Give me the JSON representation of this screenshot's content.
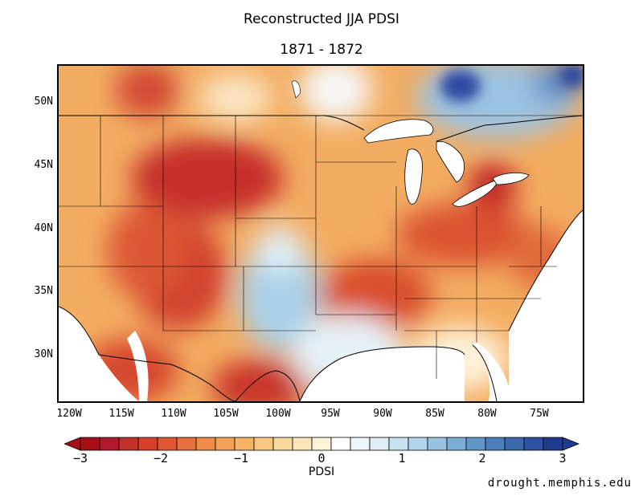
{
  "title": "Reconstructed JJA PDSI",
  "subtitle": "1871 - 1872",
  "map": {
    "lat_labels": [
      "50N",
      "45N",
      "40N",
      "35N",
      "30N"
    ],
    "lon_labels": [
      "120W",
      "115W",
      "110W",
      "105W",
      "100W",
      "95W",
      "90W",
      "85W",
      "80W",
      "75W"
    ]
  },
  "colorbar": {
    "title": "PDSI",
    "tick_labels": [
      "−3",
      "−2",
      "−1",
      "0",
      "1",
      "2",
      "3"
    ],
    "colors": [
      "#a50f15",
      "#b2182b",
      "#c33228",
      "#d6402b",
      "#e05733",
      "#e8703c",
      "#ef8a47",
      "#f4a055",
      "#f7b466",
      "#f9c77f",
      "#fbd89b",
      "#fde6b8",
      "#fef2d8",
      "#ffffff",
      "#eef5fa",
      "#deedf6",
      "#c9e2f0",
      "#b0d4ea",
      "#96c3e1",
      "#7baed6",
      "#6096c8",
      "#4a7fbb",
      "#3a68ad",
      "#2c52a0",
      "#1f3b8f"
    ]
  },
  "credit": "drought.memphis.edu"
}
